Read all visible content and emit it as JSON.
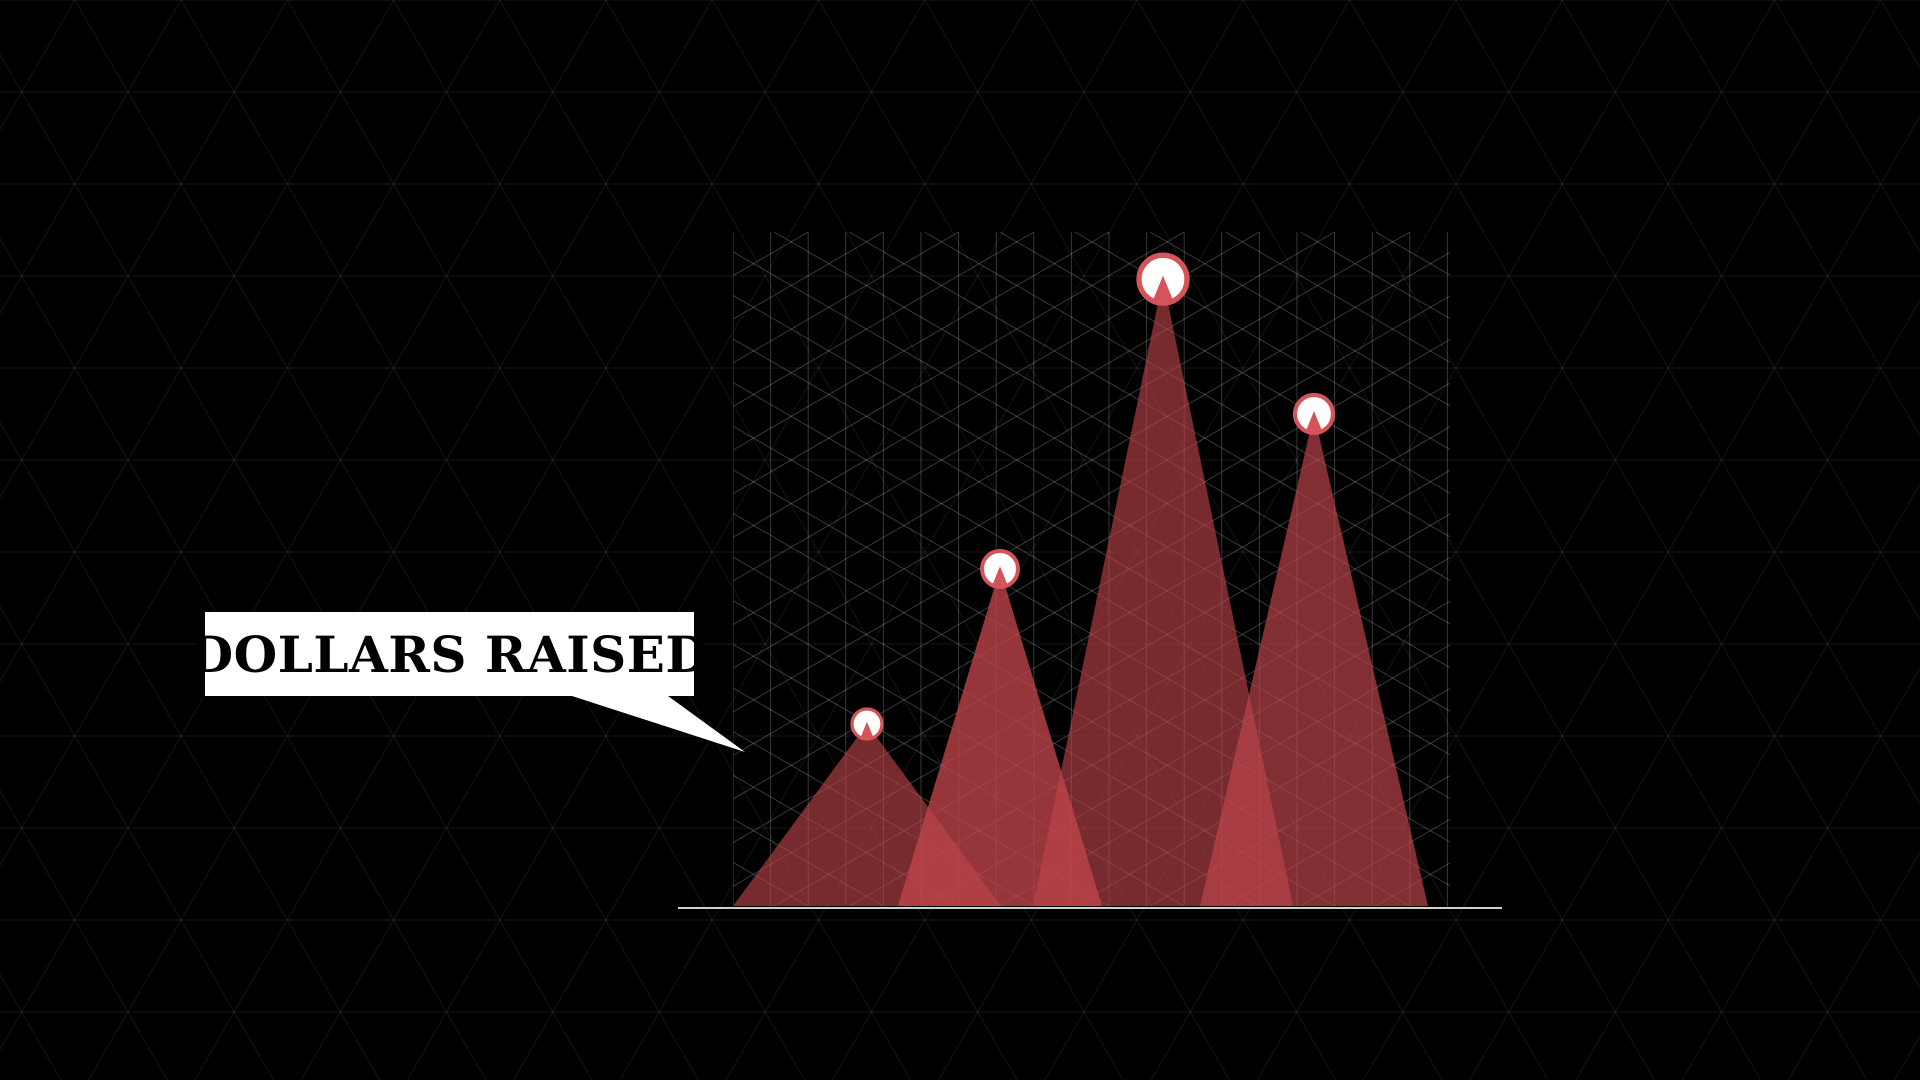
{
  "callout": {
    "label": "DOLLARS RAISED"
  },
  "colors": {
    "background": "#000000",
    "peak_fill": "#c0454c",
    "marker_ring": "#d5545c",
    "marker_fill": "#ffffff",
    "grid": "#ffffff",
    "axis": "#cfcfcf"
  },
  "chart_data": {
    "type": "area",
    "title": "",
    "xlabel": "",
    "ylabel": "",
    "grid": true,
    "legend": "none",
    "ylim": [
      0,
      100
    ],
    "series": [
      {
        "values": [
          27
        ]
      },
      {
        "values": [
          50
        ]
      },
      {
        "values": [
          93
        ]
      },
      {
        "values": [
          73
        ]
      }
    ]
  }
}
